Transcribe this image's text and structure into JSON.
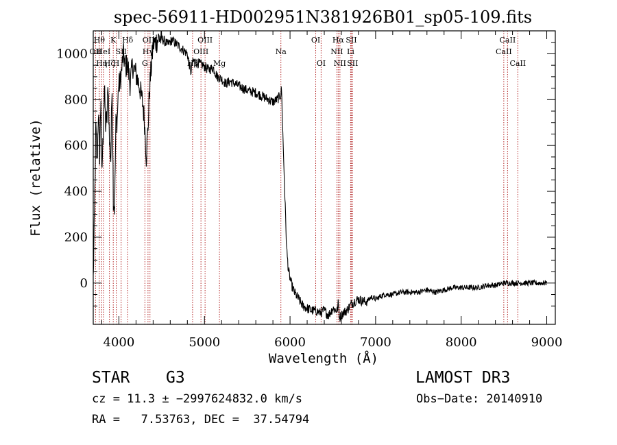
{
  "chart_data": {
    "type": "line",
    "title": "spec-56911-HD002951N381926B01_sp05-109.fits",
    "xlabel": "Wavelength (Å)",
    "ylabel": "Flux (relative)",
    "xlim": [
      3700,
      9100
    ],
    "ylim": [
      -180,
      1100
    ],
    "xticks": [
      4000,
      5000,
      6000,
      7000,
      8000,
      9000
    ],
    "yticks": [
      0,
      200,
      400,
      600,
      800,
      1000
    ],
    "grid": false,
    "line_color": "#000000",
    "marker_color": "#b22222",
    "series": [
      {
        "name": "flux",
        "x": [
          3700,
          3715,
          3730,
          3745,
          3760,
          3775,
          3790,
          3800,
          3815,
          3830,
          3845,
          3860,
          3875,
          3890,
          3905,
          3920,
          3935,
          3950,
          3965,
          3980,
          3995,
          4010,
          4030,
          4050,
          4080,
          4100,
          4130,
          4160,
          4200,
          4240,
          4280,
          4300,
          4320,
          4340,
          4360,
          4380,
          4400,
          4430,
          4470,
          4520,
          4570,
          4620,
          4680,
          4740,
          4800,
          4840,
          4861,
          4880,
          4920,
          4980,
          5050,
          5100,
          5150,
          5200,
          5250,
          5300,
          5400,
          5500,
          5600,
          5700,
          5800,
          5850,
          5890,
          5900,
          5920,
          5960,
          5980,
          5990,
          6000,
          6020,
          6050,
          6100,
          6150,
          6200,
          6250,
          6300,
          6350,
          6400,
          6450,
          6500,
          6550,
          6563,
          6580,
          6620,
          6660,
          6700,
          6717,
          6750,
          6800,
          6850,
          6900,
          6950,
          7000,
          7100,
          7200,
          7300,
          7400,
          7500,
          7600,
          7700,
          7800,
          7900,
          8000,
          8100,
          8200,
          8300,
          8400,
          8500,
          8600,
          8700,
          8800,
          8900,
          9000
        ],
        "values": [
          20,
          300,
          680,
          520,
          750,
          560,
          820,
          470,
          640,
          850,
          690,
          720,
          870,
          610,
          540,
          880,
          370,
          330,
          700,
          710,
          860,
          870,
          920,
          1000,
          940,
          960,
          870,
          950,
          910,
          860,
          780,
          700,
          550,
          680,
          860,
          950,
          1040,
          1050,
          1070,
          1060,
          1040,
          1060,
          1040,
          1020,
          1000,
          920,
          960,
          970,
          960,
          950,
          930,
          940,
          900,
          890,
          870,
          880,
          860,
          840,
          830,
          810,
          790,
          800,
          820,
          850,
          600,
          150,
          60,
          40,
          20,
          -10,
          -40,
          -70,
          -100,
          -110,
          -120,
          -120,
          -130,
          -120,
          -140,
          -110,
          -120,
          -90,
          -150,
          -130,
          -120,
          -100,
          -90,
          -80,
          -70,
          -80,
          -80,
          -60,
          -70,
          -50,
          -50,
          -40,
          -40,
          -40,
          -30,
          -40,
          -30,
          -20,
          -20,
          -20,
          -20,
          -10,
          -10,
          0,
          0,
          0,
          0,
          0,
          0
        ]
      }
    ],
    "line_markers": [
      {
        "x": 3727,
        "label": "OII",
        "row": 2
      },
      {
        "x": 3771,
        "label": "Hθ",
        "row": 1
      },
      {
        "x": 3798,
        "label": "Hη",
        "row": 3
      },
      {
        "x": 3820,
        "label": "HeI",
        "row": 2
      },
      {
        "x": 3889,
        "label": "Hζ",
        "row": 3
      },
      {
        "x": 3934,
        "label": "K",
        "row": 1
      },
      {
        "x": 3969,
        "label": "H",
        "row": 3
      },
      {
        "x": 4026,
        "label": "SII",
        "row": 2
      },
      {
        "x": 4102,
        "label": "Hδ",
        "row": 1
      },
      {
        "x": 4304,
        "label": "G",
        "row": 3
      },
      {
        "x": 4340,
        "label": "Hγ",
        "row": 2
      },
      {
        "x": 4363,
        "label": "OIII",
        "row": 1
      },
      {
        "x": 4861,
        "label": "Hβ",
        "row": 3
      },
      {
        "x": 4959,
        "label": "OIII",
        "row": 2
      },
      {
        "x": 5007,
        "label": "OIII",
        "row": 1
      },
      {
        "x": 5175,
        "label": "Mg",
        "row": 3
      },
      {
        "x": 5893,
        "label": "Na",
        "row": 2
      },
      {
        "x": 6300,
        "label": "OI",
        "row": 1
      },
      {
        "x": 6363,
        "label": "OI",
        "row": 3
      },
      {
        "x": 6548,
        "label": "NII",
        "row": 2
      },
      {
        "x": 6563,
        "label": "Hα",
        "row": 1
      },
      {
        "x": 6583,
        "label": "NII",
        "row": 3
      },
      {
        "x": 6708,
        "label": "Li",
        "row": 2
      },
      {
        "x": 6716,
        "label": "SII",
        "row": 1
      },
      {
        "x": 6731,
        "label": "SII",
        "row": 3
      },
      {
        "x": 8498,
        "label": "CaII",
        "row": 2
      },
      {
        "x": 8542,
        "label": "CaII",
        "row": 1
      },
      {
        "x": 8662,
        "label": "CaII",
        "row": 3
      }
    ]
  },
  "info": {
    "class": "STAR",
    "subclass": "G3",
    "survey": "LAMOST DR3",
    "cz_line": "cz = 11.3 ± −2997624832.0 km/s",
    "obs_date_line": "Obs−Date: 20140910",
    "coords_line": "RA =   7.53763, DEC =  37.54794"
  }
}
